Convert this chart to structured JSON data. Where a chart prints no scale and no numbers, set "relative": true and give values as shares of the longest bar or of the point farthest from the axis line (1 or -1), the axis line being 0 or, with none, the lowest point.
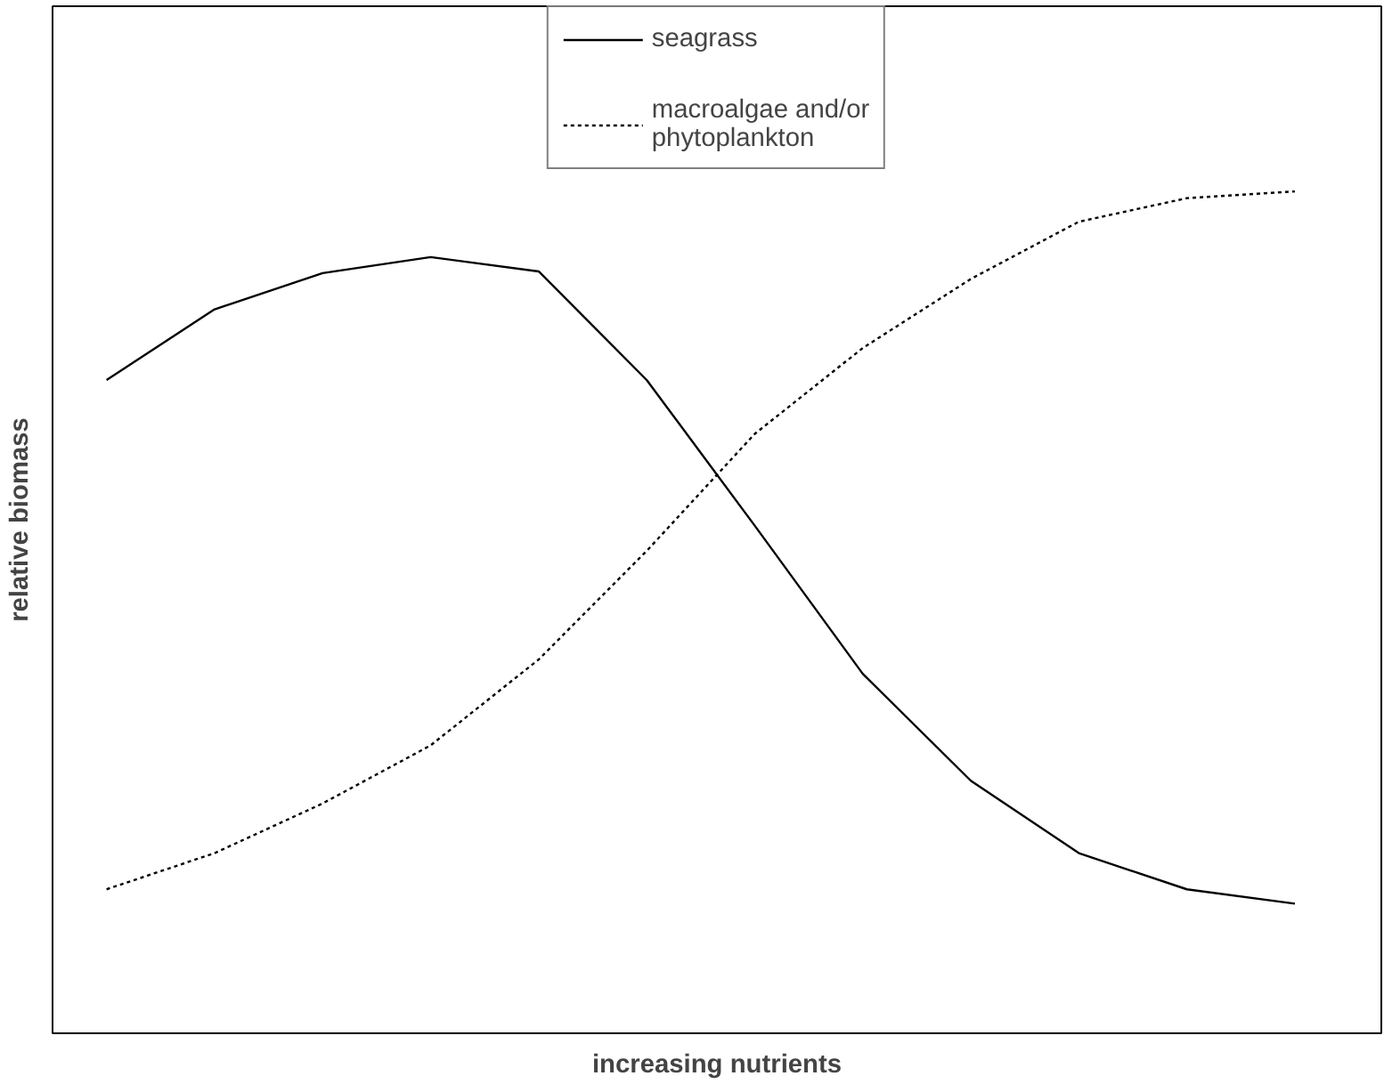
{
  "chart_data": {
    "type": "line",
    "relative": true,
    "xlabel": "increasing nutrients",
    "ylabel": "relative biomass",
    "categories": [
      null,
      null,
      null,
      null,
      null,
      null,
      null,
      null,
      null,
      null,
      null,
      null
    ],
    "series": [
      {
        "name": "seagrass",
        "color": "#000000",
        "line_style": "solid",
        "values": [
          0.776,
          0.86,
          0.903,
          0.922,
          0.905,
          0.776,
          0.603,
          0.427,
          0.3,
          0.214,
          0.171,
          0.154
        ]
      },
      {
        "name": "macroalgae and/or phytoplankton",
        "color": "#000000",
        "line_style": "dotted",
        "values": [
          0.171,
          0.214,
          0.273,
          0.342,
          0.444,
          0.573,
          0.712,
          0.814,
          0.896,
          0.964,
          0.992,
          1
        ]
      }
    ],
    "legend": "top",
    "grid": false,
    "marker": "none"
  }
}
